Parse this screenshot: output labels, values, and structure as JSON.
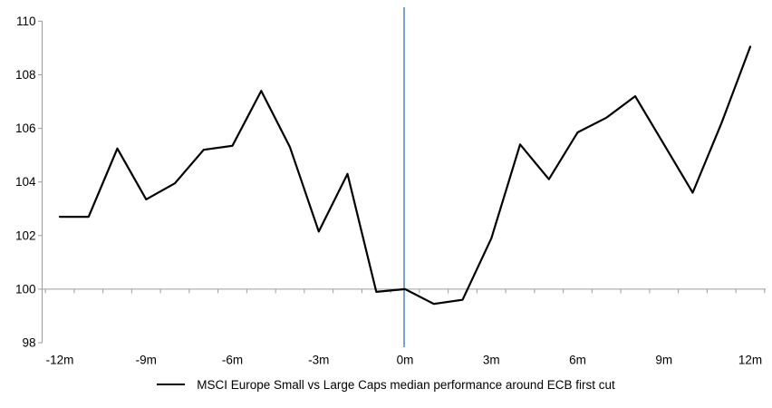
{
  "chart_data": {
    "type": "line",
    "title": "",
    "xlabel": "",
    "ylabel": "",
    "x": [
      -12,
      -11,
      -10,
      -9,
      -8,
      -7,
      -6,
      -5,
      -4,
      -3,
      -2,
      -1,
      0,
      1,
      2,
      3,
      4,
      5,
      6,
      7,
      8,
      9,
      10,
      11,
      12
    ],
    "series": [
      {
        "name": "MSCI Europe Small vs Large Caps median performance around ECB first cut",
        "values": [
          102.7,
          102.7,
          105.25,
          103.35,
          103.95,
          105.2,
          105.35,
          107.4,
          105.3,
          102.15,
          104.3,
          99.9,
          100.0,
          99.45,
          99.6,
          101.9,
          105.4,
          104.1,
          105.85,
          106.4,
          107.2,
          105.4,
          103.6,
          106.2,
          109.05
        ]
      }
    ],
    "x_tick_labels": [
      "-12m",
      "-9m",
      "-6m",
      "-3m",
      "0m",
      "3m",
      "6m",
      "9m",
      "12m"
    ],
    "x_tick_months": [
      -12,
      -9,
      -6,
      -3,
      0,
      3,
      6,
      9,
      12
    ],
    "y_tick_labels": [
      "98",
      "100",
      "102",
      "104",
      "106",
      "108",
      "110"
    ],
    "y_ticks": [
      98,
      100,
      102,
      104,
      106,
      108,
      110
    ],
    "ylim": [
      98,
      110.5
    ],
    "baseline_value": 100,
    "event_line_at_month": 0,
    "grid": "off",
    "legend_position": "bottom-center",
    "colors": {
      "series_line": "#000000",
      "event_line": "#7aa4ce",
      "axis_line": "#9d9d9d",
      "baseline": "#9d9d9d",
      "text": "#000000"
    }
  },
  "legend": {
    "label": "MSCI Europe Small vs Large Caps median performance around ECB first cut"
  }
}
